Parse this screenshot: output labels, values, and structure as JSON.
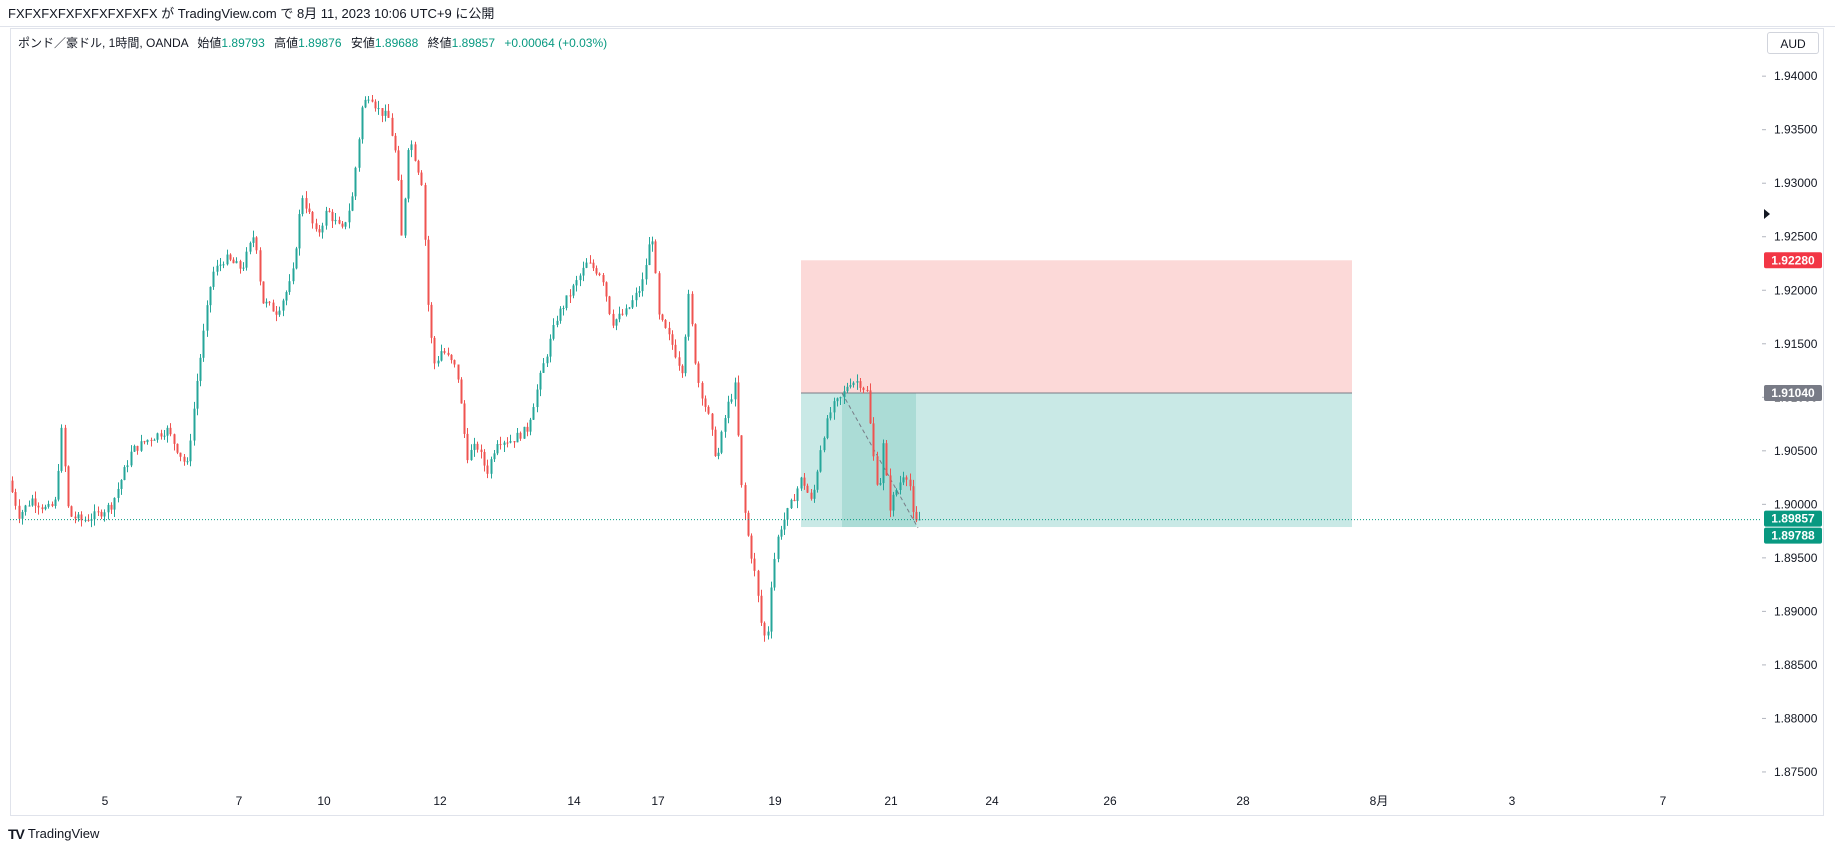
{
  "header": {
    "title": "FXFXFXFXFXFXFXFXFX が TradingView.com で 8月 11, 2023 10:06 UTC+9 に公開"
  },
  "legend": {
    "symbol": "ポンド／豪ドル, 1時間, OANDA",
    "open_label": "始値",
    "open": "1.89793",
    "high_label": "高値",
    "high": "1.89876",
    "low_label": "安値",
    "low": "1.89688",
    "close_label": "終値",
    "close": "1.89857",
    "change": "+0.00064 (+0.03%)"
  },
  "currency_button": "AUD",
  "footer": {
    "logo": "TV",
    "brand": "TradingView"
  },
  "colors": {
    "up": "#26a69a",
    "down": "#ef5350",
    "stop_zone": "#fcd9d8",
    "target_zone": "#c9e9e6",
    "stop_badge": "#f23645",
    "entry_badge": "#787b86",
    "price_badge": "#089981"
  },
  "chart_data": {
    "type": "candlestick",
    "y_axis": {
      "min": 1.8735,
      "max": 1.9445,
      "ticks": [
        "1.94000",
        "1.93500",
        "1.93000",
        "1.92500",
        "1.92000",
        "1.91500",
        "1.91000",
        "1.90500",
        "1.90000",
        "1.89500",
        "1.89000",
        "1.88500",
        "1.88000",
        "1.87500"
      ]
    },
    "x_axis": {
      "ticks": [
        "5",
        "7",
        "10",
        "12",
        "14",
        "17",
        "19",
        "21",
        "24",
        "26",
        "28",
        "8月",
        "3",
        "7"
      ]
    },
    "price_path": [
      [
        0,
        1.908
      ],
      [
        8,
        1.9035
      ],
      [
        22,
        1.899
      ],
      [
        35,
        1.9005
      ],
      [
        50,
        1.8995
      ],
      [
        58,
        1.9
      ],
      [
        65,
        1.907
      ],
      [
        72,
        1.899
      ],
      [
        85,
        1.8985
      ],
      [
        100,
        1.899
      ],
      [
        115,
        1.9
      ],
      [
        135,
        1.905
      ],
      [
        150,
        1.906
      ],
      [
        170,
        1.907
      ],
      [
        190,
        1.9035
      ],
      [
        200,
        1.9115
      ],
      [
        215,
        1.9215
      ],
      [
        228,
        1.923
      ],
      [
        245,
        1.922
      ],
      [
        258,
        1.9255
      ],
      [
        265,
        1.919
      ],
      [
        280,
        1.918
      ],
      [
        295,
        1.921
      ],
      [
        305,
        1.929
      ],
      [
        320,
        1.925
      ],
      [
        330,
        1.9275
      ],
      [
        345,
        1.9255
      ],
      [
        355,
        1.9285
      ],
      [
        365,
        1.937
      ],
      [
        373,
        1.9385
      ],
      [
        380,
        1.937
      ],
      [
        392,
        1.936
      ],
      [
        400,
        1.932
      ],
      [
        405,
        1.9245
      ],
      [
        412,
        1.9345
      ],
      [
        425,
        1.93
      ],
      [
        432,
        1.917
      ],
      [
        438,
        1.913
      ],
      [
        445,
        1.9145
      ],
      [
        460,
        1.9125
      ],
      [
        470,
        1.9045
      ],
      [
        480,
        1.9055
      ],
      [
        490,
        1.903
      ],
      [
        500,
        1.906
      ],
      [
        515,
        1.906
      ],
      [
        530,
        1.907
      ],
      [
        545,
        1.9125
      ],
      [
        560,
        1.9175
      ],
      [
        575,
        1.92
      ],
      [
        590,
        1.9225
      ],
      [
        605,
        1.9215
      ],
      [
        615,
        1.917
      ],
      [
        630,
        1.918
      ],
      [
        645,
        1.9205
      ],
      [
        655,
        1.9255
      ],
      [
        662,
        1.9175
      ],
      [
        675,
        1.915
      ],
      [
        685,
        1.9125
      ],
      [
        692,
        1.9195
      ],
      [
        700,
        1.912
      ],
      [
        712,
        1.908
      ],
      [
        720,
        1.904
      ],
      [
        730,
        1.909
      ],
      [
        738,
        1.911
      ],
      [
        745,
        1.901
      ],
      [
        752,
        1.8965
      ],
      [
        758,
        1.8935
      ],
      [
        765,
        1.8885
      ],
      [
        770,
        1.887
      ],
      [
        775,
        1.8935
      ],
      [
        782,
        1.8975
      ],
      [
        792,
        1.8995
      ],
      [
        805,
        1.9025
      ],
      [
        815,
        1.9
      ],
      [
        825,
        1.906
      ],
      [
        835,
        1.909
      ],
      [
        845,
        1.91
      ],
      [
        852,
        1.9115
      ],
      [
        862,
        1.9115
      ],
      [
        870,
        1.9105
      ],
      [
        877,
        1.904
      ],
      [
        882,
        1.901
      ],
      [
        887,
        1.906
      ],
      [
        892,
        1.8995
      ],
      [
        898,
        1.901
      ],
      [
        907,
        1.903
      ],
      [
        912,
        1.9025
      ],
      [
        916,
        1.899
      ],
      [
        918,
        1.898
      ],
      [
        922,
        1.8986
      ]
    ],
    "position": {
      "type": "short",
      "entry": 1.9104,
      "entry_label": "1.91040",
      "stop": 1.9228,
      "stop_label": "1.92280",
      "target": 1.89788,
      "target_label": "1.89788",
      "x_start": 801,
      "x_end": 1352
    },
    "current_price": 1.89857,
    "current_price_label": "1.89857",
    "grid": false,
    "title": "",
    "xlabel": "",
    "ylabel": ""
  }
}
